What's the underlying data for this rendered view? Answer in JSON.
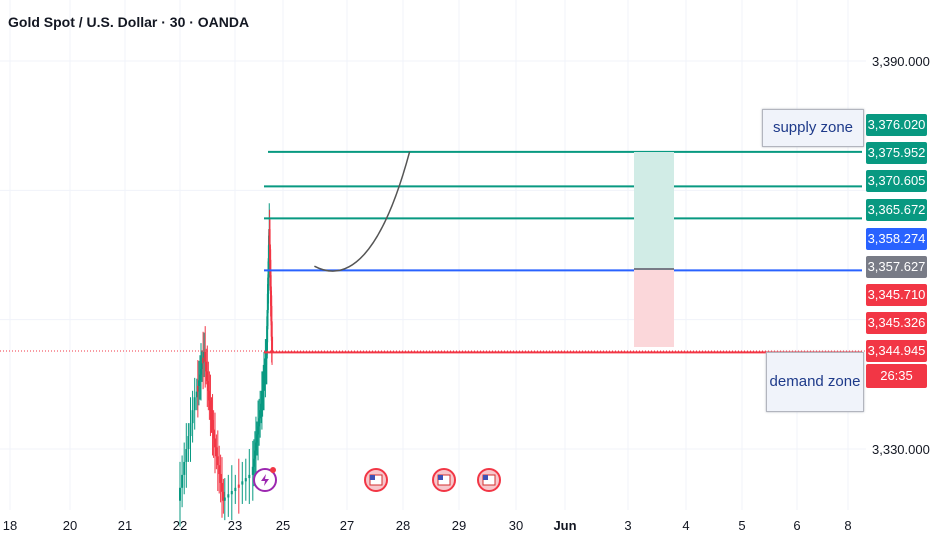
{
  "header": {
    "title": "Gold Spot / U.S. Dollar · 30 · OANDA"
  },
  "y_axis": {
    "labels": [
      "3,390.000",
      "3,330.000"
    ]
  },
  "x_axis": {
    "labels": [
      "18",
      "20",
      "21",
      "22",
      "23",
      "25",
      "27",
      "28",
      "29",
      "30",
      "Jun",
      "3",
      "4",
      "5",
      "6",
      "8"
    ]
  },
  "price_labels": [
    {
      "text": "3,376.020",
      "color": "#089981"
    },
    {
      "text": "3,375.952",
      "color": "#089981"
    },
    {
      "text": "3,370.605",
      "color": "#089981"
    },
    {
      "text": "3,365.672",
      "color": "#089981"
    },
    {
      "text": "3,358.274",
      "color": "#2962ff"
    },
    {
      "text": "3,357.627",
      "color": "#787b86"
    },
    {
      "text": "3,345.710",
      "color": "#f23645"
    },
    {
      "text": "3,345.326",
      "color": "#f23645"
    },
    {
      "text": "3,344.945",
      "color": "#f23645"
    },
    {
      "text": "26:35",
      "color": "#f23645"
    }
  ],
  "annotations": {
    "supply_zone": "supply zone",
    "demand_zone": "demand zone"
  },
  "colors": {
    "up": "#089981",
    "down": "#f23645",
    "blue_line": "#2962ff",
    "grid": "#f0f3fa"
  },
  "icons": [
    "flash-event-icon",
    "us-flag-icon",
    "us-flag-icon",
    "us-flag-icon"
  ],
  "chart_data": {
    "type": "line",
    "title": "Gold Spot / U.S. Dollar · 30 · OANDA",
    "ylim": [
      3320,
      3396
    ],
    "grid": true,
    "horizontal_levels": [
      {
        "value": 3375.952,
        "color": "#089981"
      },
      {
        "value": 3370.605,
        "color": "#089981"
      },
      {
        "value": 3365.672,
        "color": "#089981"
      },
      {
        "value": 3357.627,
        "color": "#2962ff"
      },
      {
        "value": 3344.945,
        "color": "#f23645"
      }
    ],
    "price_path": [
      {
        "x": 0.0,
        "y": 3322
      },
      {
        "x": 0.3,
        "y": 3338
      },
      {
        "x": 0.45,
        "y": 3345
      },
      {
        "x": 0.6,
        "y": 3333
      },
      {
        "x": 0.8,
        "y": 3322
      },
      {
        "x": 1.3,
        "y": 3326
      },
      {
        "x": 1.45,
        "y": 3336
      },
      {
        "x": 1.55,
        "y": 3344
      },
      {
        "x": 1.6,
        "y": 3364
      },
      {
        "x": 1.65,
        "y": 3345
      }
    ],
    "position_tool": {
      "entry": 3357.627,
      "target": 3370.605,
      "stop": 3344.945
    },
    "projection_curve": [
      {
        "x": 2.4,
        "y": 3358.274
      },
      {
        "x": 3.0,
        "y": 3357.7
      },
      {
        "x": 3.6,
        "y": 3363
      },
      {
        "x": 4.1,
        "y": 3375.952
      }
    ]
  }
}
